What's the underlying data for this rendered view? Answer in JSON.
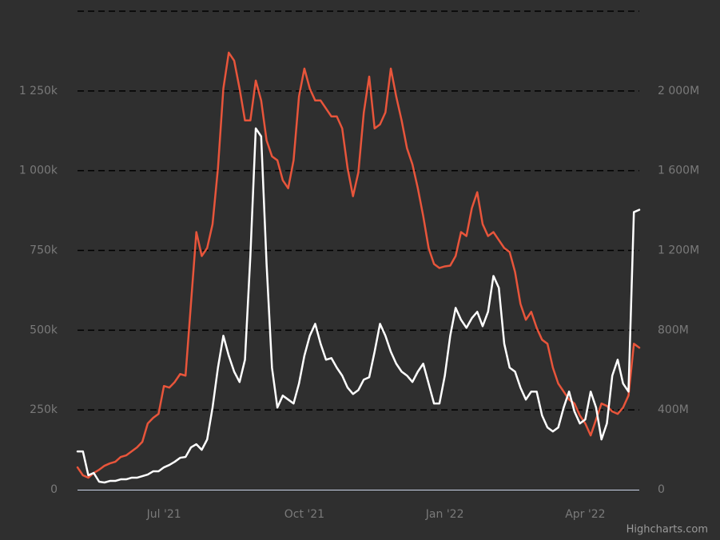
{
  "chart_data": {
    "type": "line",
    "credits": "Highcharts.com",
    "categories": [
      null,
      null,
      null,
      null,
      null,
      null,
      null,
      null,
      null,
      null,
      null,
      null,
      null,
      null,
      null,
      null,
      "Jul '21",
      null,
      null,
      null,
      null,
      null,
      null,
      null,
      null,
      null,
      null,
      null,
      null,
      null,
      null,
      null,
      null,
      null,
      null,
      null,
      null,
      null,
      null,
      null,
      null,
      null,
      "Oct '21",
      null,
      null,
      null,
      null,
      null,
      null,
      null,
      null,
      null,
      null,
      null,
      null,
      null,
      null,
      null,
      null,
      null,
      null,
      null,
      null,
      null,
      null,
      null,
      null,
      null,
      "Jan '22",
      null,
      null,
      null,
      null,
      null,
      null,
      null,
      null,
      null,
      null,
      null,
      null,
      null,
      null,
      null,
      null,
      null,
      null,
      null,
      null,
      null,
      null,
      null,
      null,
      null,
      "Apr '22",
      null,
      null,
      null,
      null,
      null,
      null,
      null,
      null,
      null,
      null
    ],
    "series": [
      {
        "color": "#e8553b",
        "axis": "y",
        "values": [
          70000,
          45000,
          37500,
          52500,
          62500,
          75000,
          82500,
          87500,
          102500,
          107500,
          120000,
          132500,
          150000,
          207500,
          225000,
          237500,
          325000,
          320000,
          337500,
          362500,
          357500,
          582500,
          807500,
          732500,
          757500,
          832500,
          1007500,
          1257500,
          1370000,
          1345000,
          1257500,
          1157500,
          1157500,
          1282500,
          1220000,
          1095000,
          1045000,
          1032500,
          970000,
          945000,
          1032500,
          1232500,
          1320000,
          1257500,
          1220000,
          1220000,
          1195000,
          1170000,
          1170000,
          1132500,
          1007500,
          920000,
          995000,
          1182500,
          1295000,
          1132500,
          1145000,
          1182500,
          1320000,
          1232500,
          1157500,
          1070000,
          1020000,
          945000,
          857500,
          757500,
          707500,
          695000,
          700000,
          702500,
          732500,
          807500,
          795000,
          882500,
          932500,
          832500,
          795000,
          807500,
          782500,
          757500,
          745000,
          682500,
          582500,
          532500,
          557500,
          507500,
          470000,
          457500,
          382500,
          332500,
          307500,
          282500,
          270000,
          232500,
          207500,
          170000,
          220000,
          270000,
          262500,
          245000,
          237500,
          257500,
          295000,
          457500,
          445000
        ]
      },
      {
        "color": "#ffffff",
        "axis": "y2",
        "values": [
          192000000,
          192000000,
          72000000,
          84000000,
          40000000,
          36000000,
          44000000,
          44000000,
          52000000,
          52000000,
          60000000,
          60000000,
          68000000,
          76000000,
          92000000,
          92000000,
          112000000,
          124000000,
          140000000,
          160000000,
          164000000,
          212000000,
          228000000,
          200000000,
          252000000,
          412000000,
          612000000,
          772000000,
          672000000,
          592000000,
          540000000,
          652000000,
          1172000000,
          1812000000,
          1772000000,
          1132000000,
          612000000,
          412000000,
          472000000,
          452000000,
          432000000,
          532000000,
          672000000,
          772000000,
          832000000,
          732000000,
          652000000,
          660000000,
          612000000,
          572000000,
          512000000,
          480000000,
          500000000,
          552000000,
          564000000,
          692000000,
          832000000,
          772000000,
          692000000,
          632000000,
          592000000,
          572000000,
          540000000,
          592000000,
          632000000,
          532000000,
          432000000,
          432000000,
          572000000,
          772000000,
          912000000,
          852000000,
          812000000,
          860000000,
          892000000,
          820000000,
          892000000,
          1072000000,
          1012000000,
          732000000,
          612000000,
          592000000,
          512000000,
          452000000,
          492000000,
          492000000,
          372000000,
          312000000,
          292000000,
          312000000,
          412000000,
          492000000,
          392000000,
          332000000,
          352000000,
          492000000,
          412000000,
          252000000,
          332000000,
          572000000,
          652000000,
          532000000,
          492000000,
          1392000000,
          1404000000
        ]
      }
    ],
    "ylim": [
      0,
      1500000
    ],
    "yticks": [
      0,
      {
        "value": 250000,
        "label": "250k"
      },
      {
        "value": 500000,
        "label": "500k"
      },
      {
        "value": 750000,
        "label": "750k"
      },
      {
        "value": 1000000,
        "label": "1 000k"
      },
      {
        "value": 1250000,
        "label": "1 250k"
      }
    ],
    "y2lim": [
      0,
      2400000000
    ],
    "y2ticks": [
      0,
      {
        "value": 400000000,
        "label": "400M"
      },
      {
        "value": 800000000,
        "label": "800M"
      },
      {
        "value": 1200000000,
        "label": "1 200M"
      },
      {
        "value": 1600000000,
        "label": "1 600M"
      },
      {
        "value": 2000000000,
        "label": "2 000M"
      }
    ],
    "grid": true
  }
}
